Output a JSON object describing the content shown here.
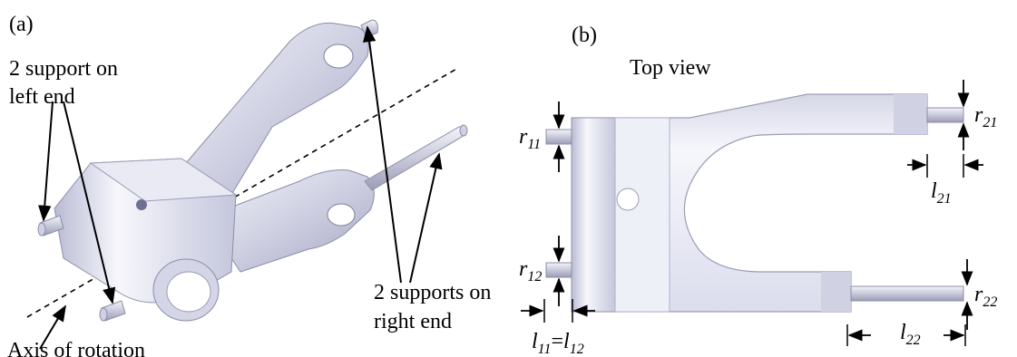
{
  "panel_a": {
    "tag": "(a)",
    "left_support_label_1": "2 support on",
    "left_support_label_2": "left end",
    "right_support_label_1": "2 supports on",
    "right_support_label_2": "right end",
    "axis_label": "Axis of rotation"
  },
  "panel_b": {
    "tag": "(b)",
    "title": "Top view",
    "r11": "r",
    "r11_sub": "11",
    "r12": "r",
    "r12_sub": "12",
    "r21": "r",
    "r21_sub": "21",
    "r22": "r",
    "r22_sub": "22",
    "l21": "l",
    "l21_sub": "21",
    "l22": "l",
    "l22_sub": "22",
    "l11": "l",
    "l11_sub": "11",
    "l_eq": "=",
    "l12": "l",
    "l12_sub": "12"
  },
  "colors": {
    "part_fill": "#c9c9dc",
    "part_light": "#eef0f8",
    "part_dark": "#9a9ab8",
    "line": "#000000"
  }
}
